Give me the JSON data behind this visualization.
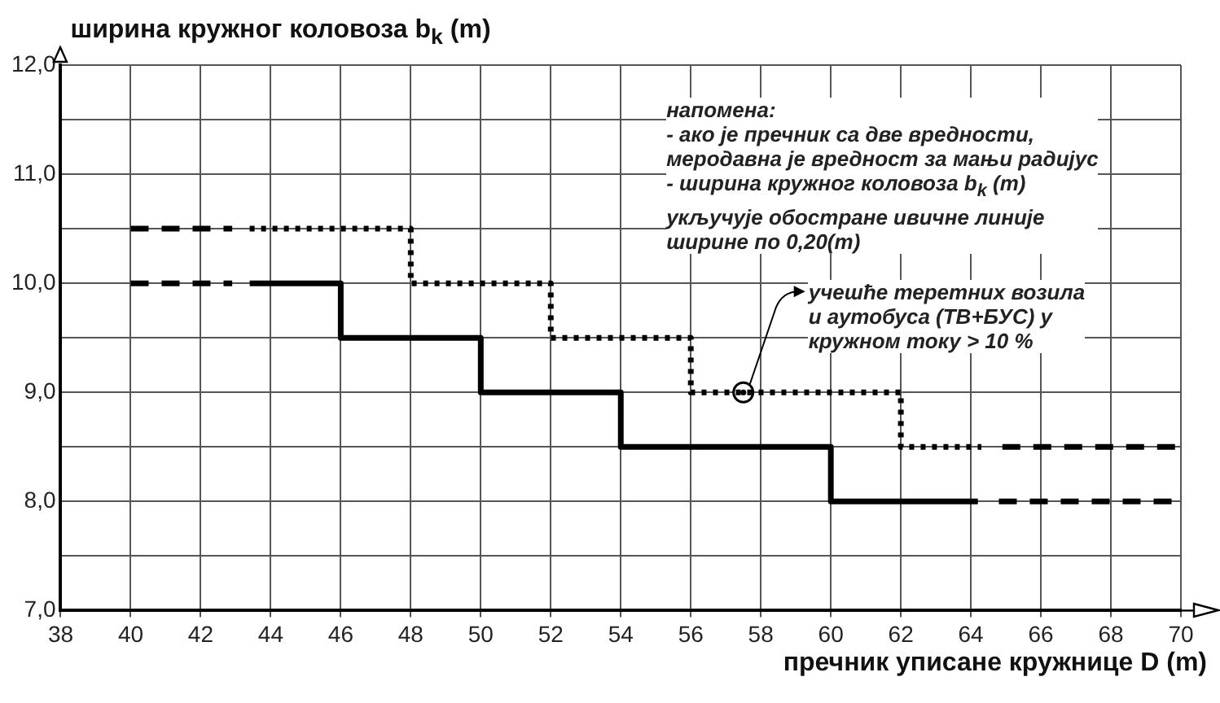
{
  "chart_data": {
    "type": "line",
    "ylabel": "ширина кружног коловоза b$_{k}$ (m)",
    "xlabel": "пречник уписане кружнице D (m)",
    "xlim": [
      38,
      70
    ],
    "xticks": [
      38,
      40,
      42,
      44,
      46,
      48,
      50,
      52,
      54,
      56,
      58,
      60,
      62,
      64,
      66,
      68,
      70
    ],
    "ylim": [
      7,
      12
    ],
    "yticks": [
      {
        "value": 7,
        "label": "7,0"
      },
      {
        "value": 7.5,
        "label": null
      },
      {
        "value": 8,
        "label": "8,0"
      },
      {
        "value": 8.5,
        "label": null
      },
      {
        "value": 9,
        "label": "9,0"
      },
      {
        "value": 9.5,
        "label": null
      },
      {
        "value": 10,
        "label": "10,0"
      },
      {
        "value": 10.5,
        "label": null
      },
      {
        "value": 11,
        "label": "11,0"
      },
      {
        "value": 11.5,
        "label": null
      },
      {
        "value": 12,
        "label": "12,0"
      }
    ],
    "grid": true,
    "legend": false,
    "marker": "none",
    "series": [
      {
        "color": "#000000",
        "line_style": "dashed",
        "x": [
          40,
          42.9
        ],
        "values": [
          10,
          10
        ]
      },
      {
        "color": "#000000",
        "line_style": "solid",
        "x": [
          43.4,
          46,
          46,
          50,
          50,
          54,
          54,
          60,
          60,
          64.2
        ],
        "values": [
          10,
          10,
          9.5,
          9.5,
          9,
          9,
          8.5,
          8.5,
          8,
          8
        ]
      },
      {
        "color": "#000000",
        "line_style": "dashed",
        "x": [
          64.8,
          70
        ],
        "values": [
          8,
          8
        ]
      },
      {
        "color": "#000000",
        "line_style": "dashed",
        "x": [
          40,
          42.9
        ],
        "values": [
          10.5,
          10.5
        ]
      },
      {
        "color": "#000000",
        "line_style": "dotted",
        "x": [
          43.4,
          48,
          48,
          52,
          52,
          56,
          56,
          62,
          62,
          64.3
        ],
        "values": [
          10.5,
          10.5,
          10,
          10,
          9.5,
          9.5,
          9,
          9,
          8.5,
          8.5
        ]
      },
      {
        "color": "#000000",
        "line_style": "dashed",
        "x": [
          64.9,
          70
        ],
        "values": [
          8.5,
          8.5
        ]
      },
      {
        "type": "scatter",
        "color": "#000000",
        "marker": "circle",
        "x": [
          57.5
        ],
        "values": [
          9
        ]
      }
    ],
    "annotations": [
      "напомена:\n- ако је пречник са две вредности,\nмеродавна је вредност за мањи радијус\n- ширина кружног коловоза b$_{k}$ (m)\nукључује обостране ивичне линије\nширине по 0,20(m)",
      {
        "text": "учешће теретних возила\nи аутобуса (ТВ+БУС) у\nкружном току > 10 %",
        "x": 57.5,
        "y": 9
      }
    ]
  }
}
